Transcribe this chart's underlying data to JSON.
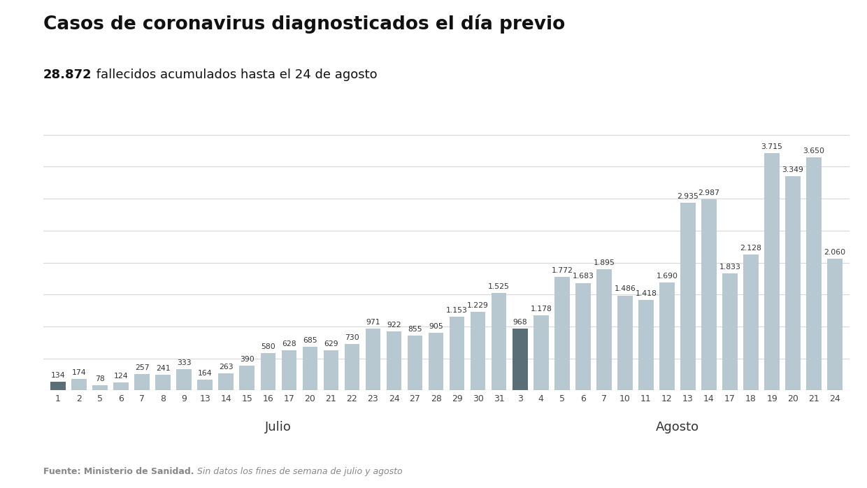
{
  "title": "Casos de coronavirus diagnosticados el día previo",
  "subtitle_bold": "28.872",
  "subtitle_rest": " fallecidos acumulados hasta el 24 de agosto",
  "source_bold": "Fuente: Ministerio de Sanidad.",
  "source_italic": " Sin datos los fines de semana de julio y agosto",
  "labels": [
    "1",
    "2",
    "5",
    "6",
    "7",
    "8",
    "9",
    "13",
    "14",
    "15",
    "16",
    "17",
    "20",
    "21",
    "22",
    "23",
    "24",
    "27",
    "28",
    "29",
    "30",
    "31",
    "3",
    "4",
    "5",
    "6",
    "7",
    "10",
    "11",
    "12",
    "13",
    "14",
    "17",
    "18",
    "19",
    "20",
    "21",
    "24"
  ],
  "values": [
    134,
    174,
    78,
    124,
    257,
    241,
    333,
    164,
    263,
    390,
    580,
    628,
    685,
    629,
    730,
    971,
    922,
    855,
    905,
    1153,
    1229,
    1525,
    968,
    1178,
    1772,
    1683,
    1895,
    1486,
    1418,
    1690,
    2935,
    2987,
    1833,
    2128,
    3715,
    3349,
    3650,
    2060
  ],
  "months": [
    {
      "label": "Julio",
      "start": 0,
      "end": 21
    },
    {
      "label": "Agosto",
      "start": 22,
      "end": 37
    }
  ],
  "bar_color_default": "#b8c8d0",
  "bar_color_dark": "#5a6e78",
  "dark_indices": [
    0,
    22
  ],
  "ylim": [
    0,
    4200
  ],
  "yticks": [
    500,
    1000,
    1500,
    2000,
    2500,
    3000,
    3500,
    4000
  ],
  "background_color": "#ffffff",
  "grid_color": "#d8d8d8",
  "title_fontsize": 19,
  "subtitle_fontsize": 13,
  "label_fontsize": 7.8,
  "source_fontsize": 9,
  "month_fontsize": 13
}
